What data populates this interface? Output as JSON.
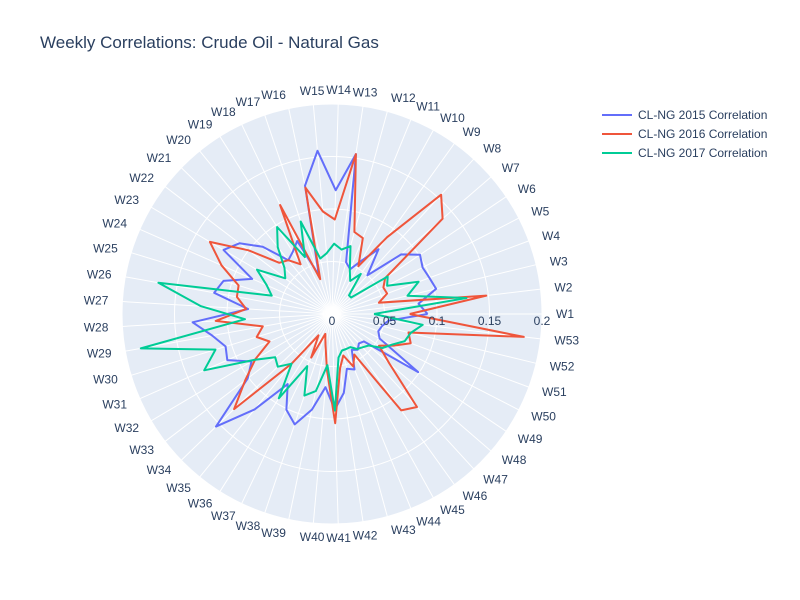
{
  "chart_data": {
    "type": "radar",
    "title": "Weekly Correlations: Crude Oil - Natural Gas",
    "categories": [
      "W1",
      "W2",
      "W3",
      "W4",
      "W5",
      "W6",
      "W7",
      "W8",
      "W9",
      "W10",
      "W11",
      "W12",
      "W13",
      "W14",
      "W15",
      "W16",
      "W17",
      "W18",
      "W19",
      "W20",
      "W21",
      "W22",
      "W23",
      "W24",
      "W25",
      "W26",
      "W27",
      "W28",
      "W29",
      "W30",
      "W31",
      "W32",
      "W33",
      "W34",
      "W35",
      "W36",
      "W37",
      "W38",
      "W39",
      "W40",
      "W41",
      "W42",
      "W43",
      "W44",
      "W45",
      "W46",
      "W47",
      "W48",
      "W49",
      "W50",
      "W51",
      "W52",
      "W53"
    ],
    "radial_range": [
      0,
      0.2
    ],
    "radial_ticks": [
      "0",
      "0.05",
      "0.1",
      "0.15",
      "0.2"
    ],
    "radial_tick_values": [
      0,
      0.05,
      0.1,
      0.15,
      0.2
    ],
    "grid": true,
    "legend_position": "top-right",
    "series": [
      {
        "name": "CL-NG 2015 Correlation",
        "color": "#636efa",
        "values": [
          0.091,
          0.083,
          0.102,
          0.099,
          0.097,
          0.101,
          0.087,
          0.05,
          0.076,
          0.058,
          0.046,
          0.051,
          0.154,
          0.118,
          0.156,
          0.125,
          0.039,
          0.077,
          0.07,
          0.066,
          0.092,
          0.111,
          0.12,
          0.083,
          0.108,
          0.114,
          0.08,
          0.133,
          0.116,
          0.106,
          0.109,
          0.089,
          0.101,
          0.154,
          0.117,
          0.079,
          0.101,
          0.111,
          0.093,
          0.07,
          0.091,
          0.076,
          0.054,
          0.057,
          0.039,
          0.042,
          0.038,
          0.04,
          0.099,
          0.051,
          0.047,
          0.049,
          0.054
        ]
      },
      {
        "name": "CL-NG 2016 Correlation",
        "color": "#ef553b",
        "values": [
          0.074,
          0.148,
          0.046,
          0.056,
          0.055,
          0.061,
          0.139,
          0.154,
          0.09,
          0.052,
          0.078,
          0.081,
          0.154,
          0.09,
          0.098,
          0.123,
          0.035,
          0.115,
          0.056,
          0.066,
          0.07,
          0.1,
          0.135,
          0.115,
          0.093,
          0.092,
          0.082,
          0.111,
          0.067,
          0.075,
          0.065,
          0.085,
          0.104,
          0.13,
          0.061,
          0.024,
          0.046,
          0.02,
          0.03,
          0.054,
          0.104,
          0.052,
          0.041,
          0.054,
          0.044,
          0.113,
          0.12,
          0.072,
          0.054,
          0.066,
          0.08,
          0.075,
          0.184
        ]
      },
      {
        "name": "CL-NG 2017 Correlation",
        "color": "#00cc96",
        "values": [
          0.04,
          0.129,
          0.074,
          0.088,
          0.059,
          0.064,
          0.024,
          0.024,
          0.047,
          0.036,
          0.045,
          0.067,
          0.062,
          0.067,
          0.058,
          0.054,
          0.093,
          0.06,
          0.098,
          0.082,
          0.063,
          0.056,
          0.083,
          0.068,
          0.06,
          0.168,
          0.125,
          0.083,
          0.185,
          0.116,
          0.133,
          0.086,
          0.068,
          0.072,
          0.061,
          0.095,
          0.055,
          0.082,
          0.075,
          0.049,
          0.092,
          0.042,
          0.036,
          0.036,
          0.036,
          0.041,
          0.043,
          0.046,
          0.058,
          0.064,
          0.074,
          0.077,
          0.087
        ]
      }
    ]
  }
}
